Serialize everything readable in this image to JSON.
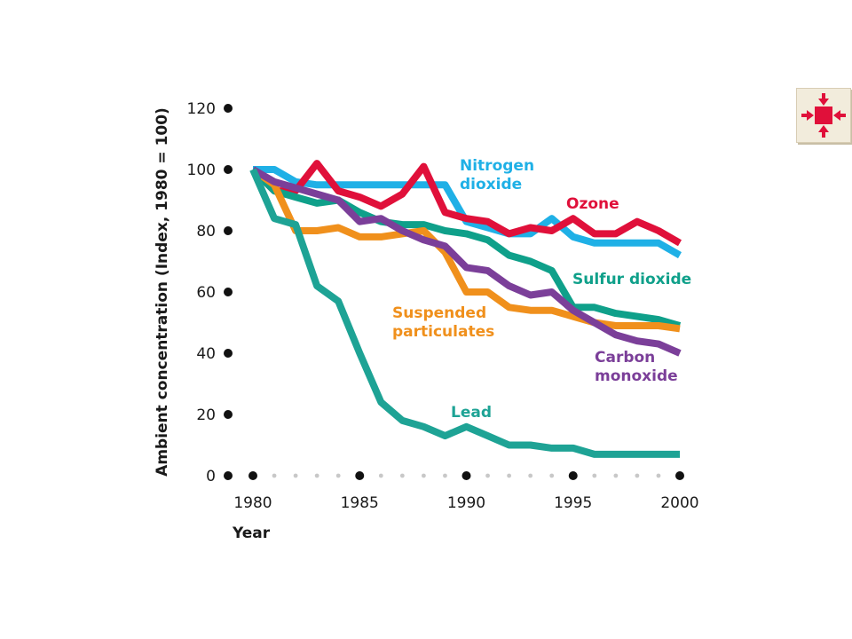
{
  "chart_data": {
    "type": "line",
    "xlabel": "Year",
    "ylabel": "Ambient concentration (Index, 1980 = 100)",
    "xlim": [
      1980,
      2000
    ],
    "ylim": [
      0,
      120
    ],
    "xticks": [
      "1980",
      "1985",
      "1990",
      "1995",
      "2000"
    ],
    "yticks": [
      "0",
      "20",
      "40",
      "60",
      "80",
      "100",
      "120"
    ],
    "grid": false,
    "legend": "inline labels",
    "x": [
      1980,
      1981,
      1982,
      1983,
      1984,
      1985,
      1986,
      1987,
      1988,
      1989,
      1990,
      1991,
      1992,
      1993,
      1994,
      1995,
      1996,
      1997,
      1998,
      1999,
      2000
    ],
    "series": [
      {
        "name": "Nitrogen dioxide",
        "color": "#1fb0e6",
        "values": [
          100,
          100,
          96,
          95,
          95,
          95,
          95,
          95,
          95,
          95,
          83,
          81,
          79,
          79,
          84,
          78,
          76,
          76,
          76,
          76,
          72
        ]
      },
      {
        "name": "Ozone",
        "color": "#e0103a",
        "values": [
          100,
          93,
          93,
          102,
          93,
          91,
          88,
          92,
          101,
          86,
          84,
          83,
          79,
          81,
          80,
          84,
          79,
          79,
          83,
          80,
          76
        ]
      },
      {
        "name": "Sulfur dioxide",
        "color": "#0fa08a",
        "values": [
          100,
          93,
          91,
          89,
          90,
          86,
          83,
          82,
          82,
          80,
          79,
          77,
          72,
          70,
          67,
          55,
          55,
          53,
          52,
          51,
          49
        ]
      },
      {
        "name": "Suspended particulates",
        "color": "#f0901c",
        "values": [
          100,
          95,
          80,
          80,
          81,
          78,
          78,
          79,
          80,
          73,
          60,
          60,
          55,
          54,
          54,
          52,
          50,
          49,
          49,
          49,
          48
        ]
      },
      {
        "name": "Carbon monoxide",
        "color": "#7b3f99",
        "values": [
          100,
          96,
          94,
          92,
          90,
          83,
          84,
          80,
          77,
          75,
          68,
          67,
          62,
          59,
          60,
          54,
          50,
          46,
          44,
          43,
          40
        ]
      },
      {
        "name": "Lead",
        "color": "#1ea395",
        "values": [
          100,
          84,
          82,
          62,
          57,
          40,
          24,
          18,
          16,
          13,
          16,
          13,
          10,
          10,
          9,
          9,
          7,
          7,
          7,
          7,
          7
        ]
      }
    ],
    "series_labels": [
      {
        "lines": [
          "Nitrogen",
          "dioxide"
        ],
        "color": "#1fb0e6"
      },
      {
        "lines": [
          "Ozone"
        ],
        "color": "#e0103a"
      },
      {
        "lines": [
          "Sulfur dioxide"
        ],
        "color": "#0fa08a"
      },
      {
        "lines": [
          "Suspended",
          "particulates"
        ],
        "color": "#f0901c"
      },
      {
        "lines": [
          "Carbon",
          "monoxide"
        ],
        "color": "#7b3f99"
      },
      {
        "lines": [
          "Lead"
        ],
        "color": "#1ea395"
      }
    ]
  },
  "nav_button": {
    "icon": "collapse-arrows-icon",
    "bg_color": "#f2ecdc",
    "icon_color": "#e0103a"
  }
}
